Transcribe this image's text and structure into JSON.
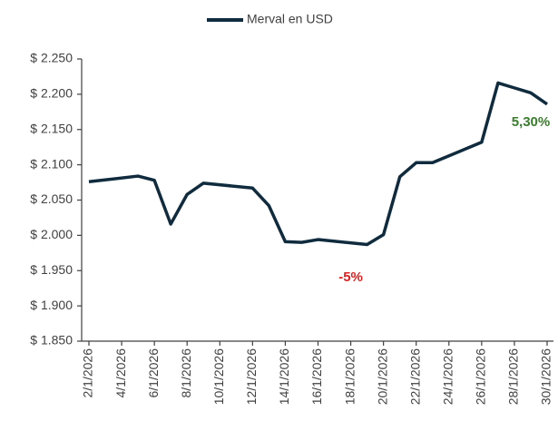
{
  "chart_data": {
    "type": "line",
    "x": [
      "2/1/2026",
      "5/1/2026",
      "6/1/2026",
      "7/1/2026",
      "8/1/2026",
      "9/1/2026",
      "12/1/2026",
      "13/1/2026",
      "14/1/2026",
      "15/1/2026",
      "16/1/2026",
      "19/1/2026",
      "20/1/2026",
      "21/1/2026",
      "22/1/2026",
      "23/1/2026",
      "26/1/2026",
      "27/1/2026",
      "28/1/2026",
      "29/1/2026",
      "30/1/2026"
    ],
    "series": [
      {
        "name": "Merval en USD",
        "color": "#0f2b3d",
        "values": [
          2076,
          2084,
          2078,
          2016,
          2058,
          2074,
          2067,
          2042,
          1991,
          1990,
          1994,
          1987,
          2001,
          2083,
          2103,
          2103,
          2132,
          2216,
          2209,
          2202,
          2186
        ]
      }
    ],
    "xlim": [
      "2/1/2026",
      "30/1/2026"
    ],
    "xticks": [
      "2/1/2026",
      "4/1/2026",
      "6/1/2026",
      "8/1/2026",
      "10/1/2026",
      "12/1/2026",
      "14/1/2026",
      "16/1/2026",
      "18/1/2026",
      "20/1/2026",
      "22/1/2026",
      "24/1/2026",
      "26/1/2026",
      "28/1/2026",
      "30/1/2026"
    ],
    "ylim": [
      1850,
      2250
    ],
    "yticks": [
      {
        "value": 1850,
        "label": "$ 1.850"
      },
      {
        "value": 1900,
        "label": "$ 1.900"
      },
      {
        "value": 1950,
        "label": "$ 1.950"
      },
      {
        "value": 2000,
        "label": "$ 2.000"
      },
      {
        "value": 2050,
        "label": "$ 2.050"
      },
      {
        "value": 2100,
        "label": "$ 2.100"
      },
      {
        "value": 2150,
        "label": "$ 2.150"
      },
      {
        "value": 2200,
        "label": "$ 2.200"
      },
      {
        "value": 2250,
        "label": "$ 2.250"
      }
    ],
    "grid": false,
    "annotations": [
      {
        "text": "-5%",
        "x": "18/1/2026",
        "y": 1940,
        "color": "#e02020"
      },
      {
        "text": "5,30%",
        "x": "29/1/2026",
        "y": 2160,
        "color": "#3a7d2c"
      }
    ]
  }
}
